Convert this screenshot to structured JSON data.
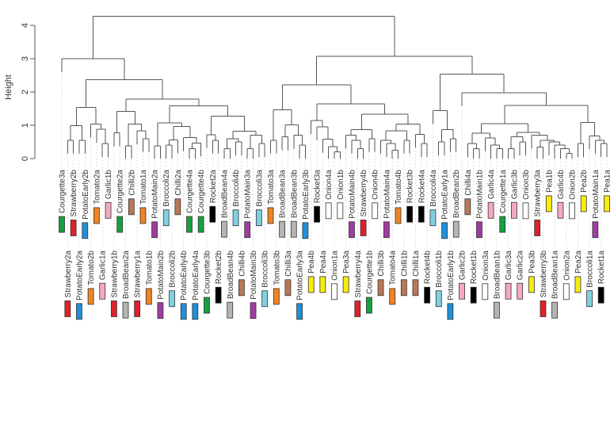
{
  "chart_data": {
    "type": "dendrogram",
    "title": "",
    "ylabel": "Height",
    "ylim": [
      0,
      4.3
    ],
    "yticks": [
      "0",
      "1",
      "2",
      "3",
      "4"
    ],
    "leaf_hang": 0.4,
    "crop_colors": {
      "Strawberry": "#e0202a",
      "PotatoEarly": "#1e90d8",
      "PotatoMain": "#a03ca0",
      "Tomato": "#f08424",
      "Garlic": "#f4a8c4",
      "Courgette": "#16a040",
      "BroadBean": "#b4b4b4",
      "Chilli": "#b87858",
      "Broccoli": "#80d0e0",
      "Rocket": "#000000",
      "Pea": "#f8ec10",
      "Onion": "#ffffff"
    },
    "tree": [
      4.27,
      [
        3.0,
        "Courgette3a",
        [
          2.37,
          [
            1.53,
            [
              0.99,
              [
                0.55,
                "Strawberry2a",
                "Strawberry2b"
              ],
              [
                0.55,
                "PotatoEarly2a",
                "PotatoEarly2b"
              ]
            ],
            [
              1.03,
              "Tomato2b",
              [
                0.88,
                "Tomato2a",
                [
                  0.45,
                  "Garlic1a",
                  "Garlic1b"
                ]
              ]
            ]
          ],
          [
            1.78,
            [
              1.42,
              [
                0.77,
                "Strawberry1b",
                "Courgette2a"
              ],
              [
                1.03,
                [
                  0.38,
                  "BroadBean2a",
                  "Chilli2b"
                ],
                [
                  0.83,
                  "Strawberry1a",
                  [
                    0.6,
                    "Tomato1a",
                    "Tomato1b"
                  ]
                ]
              ]
            ],
            [
              1.58,
              [
                1.07,
                [
                  0.38,
                  "PotatoMain2a",
                  "PotatoMain2b"
                ],
                [
                  0.96,
                  [
                    0.56,
                    [
                      0.4,
                      "Broccoli2a",
                      "Broccoli2b"
                    ],
                    "Chilli2a"
                  ],
                  [
                    0.63,
                    "PotatoEarly4b",
                    [
                      0.47,
                      [
                        0.3,
                        "Courgette4a",
                        "PotatoEarly4a"
                      ],
                      "Courgette4b"
                    ]
                  ]
                ]
              ],
              [
                1.27,
                [
                  0.72,
                  "Courgette3b",
                  [
                    0.55,
                    "Rocket2a",
                    "Rocket2b"
                  ]
                ],
                [
                  0.82,
                  [
                    0.6,
                    [
                      0.3,
                      "BroadBean4a",
                      "BroadBean4b"
                    ],
                    [
                      0.5,
                      "Broccoli4b",
                      "Chilli4b"
                    ]
                  ],
                  [
                    0.7,
                    [
                      0.3,
                      "PotatoMain3a",
                      "PotatoMain3b"
                    ],
                    [
                      0.45,
                      "Broccoli3a",
                      "Broccoli3b"
                    ]
                  ]
                ]
              ]
            ]
          ]
        ]
      ],
      [
        3.07,
        [
          2.22,
          [
            1.47,
            [
              0.55,
              "Tomato3a",
              "Tomato3b"
            ],
            [
              1.01,
              [
                0.65,
                "BroadBean3a",
                "Chilli3a"
              ],
              [
                0.7,
                "BroadBean3b",
                [
                  0.4,
                  "PotatoEarly3a",
                  "PotatoEarly3b"
                ]
              ]
            ]
          ],
          [
            1.64,
            [
              1.14,
              "Pea4b",
              [
                0.95,
                "Rocket3a",
                [
                  0.58,
                  "Pea4a",
                  [
                    0.36,
                    "Onion4a",
                    [
                      0.2,
                      "Onion1a",
                      "Onion1b"
                    ]
                  ]
                ]
              ]
            ],
            [
              1.33,
              [
                0.87,
                [
                  0.7,
                  "Pea3a",
                  [
                    0.55,
                    "PotatoMain4b",
                    [
                      0.3,
                      "Strawberry4a",
                      "Strawberry4b"
                    ]
                  ]
                ],
                [
                  0.6,
                  "Courgette1b",
                  "Onion4b"
                ]
              ],
              [
                1.04,
                [
                  0.83,
                  [
                    0.55,
                    "Chilli3b",
                    [
                      0.45,
                      "PotatoMain4a",
                      [
                        0.25,
                        "Tomato4a",
                        "Tomato4b"
                      ]
                    ]
                  ],
                  [
                    0.55,
                    "Chilli1b",
                    "Rocket3b"
                  ]
                ],
                [
                  0.73,
                  "Chilli1a",
                  [
                    0.45,
                    "Rocket4a",
                    "Rocket4b"
                  ]
                ]
              ]
            ]
          ]
        ],
        [
          2.54,
          [
            1.44,
            "Broccoli4a",
            [
              0.87,
              [
                0.5,
                "Broccoli1b",
                "PotatoEarly1a"
              ],
              [
                0.6,
                "PotatoEarly1b",
                "BroadBean2b"
              ]
            ]
          ],
          [
            1.98,
            "Garlic2b",
            [
              1.59,
              [
                1.05,
                [
                  0.76,
                  [
                    0.45,
                    "Chilli4a",
                    [
                      0.3,
                      "Rocket1b",
                      "PotatoMain1b"
                    ]
                  ],
                  [
                    0.62,
                    "Onion3a",
                    [
                      0.4,
                      "Garlic4a",
                      [
                        0.3,
                        "BroadBean1b",
                        "Courgette1a"
                      ]
                    ]
                  ]
                ],
                [
                  0.78,
                  [
                    0.65,
                    [
                      0.3,
                      "Garlic3a",
                      "Garlic3b"
                    ],
                    [
                      0.5,
                      "Garlic2a",
                      "Onion3b"
                    ]
                  ],
                  [
                    0.7,
                    "Pea3b",
                    [
                      0.55,
                      [
                        0.35,
                        "Strawberry3a",
                        "Strawberry3b"
                      ],
                      [
                        0.5,
                        "Pea1b",
                        [
                          0.4,
                          "BroadBean1a",
                          [
                            0.3,
                            "Garlic4b",
                            [
                              0.15,
                              "Onion2a",
                              "Onion2b"
                            ]
                          ]
                        ]
                      ]
                    ]
                  ]
                ]
              ],
              [
                1.08,
                [
                  0.45,
                  "Pea2a",
                  "Pea2b"
                ],
                [
                  0.68,
                  "Broccoli1a",
                  [
                    0.55,
                    "PotatoMain1a",
                    [
                      0.45,
                      "Rocket1a",
                      "Pea1a"
                    ]
                  ]
                ]
              ]
            ]
          ]
        ]
      ]
    ]
  }
}
